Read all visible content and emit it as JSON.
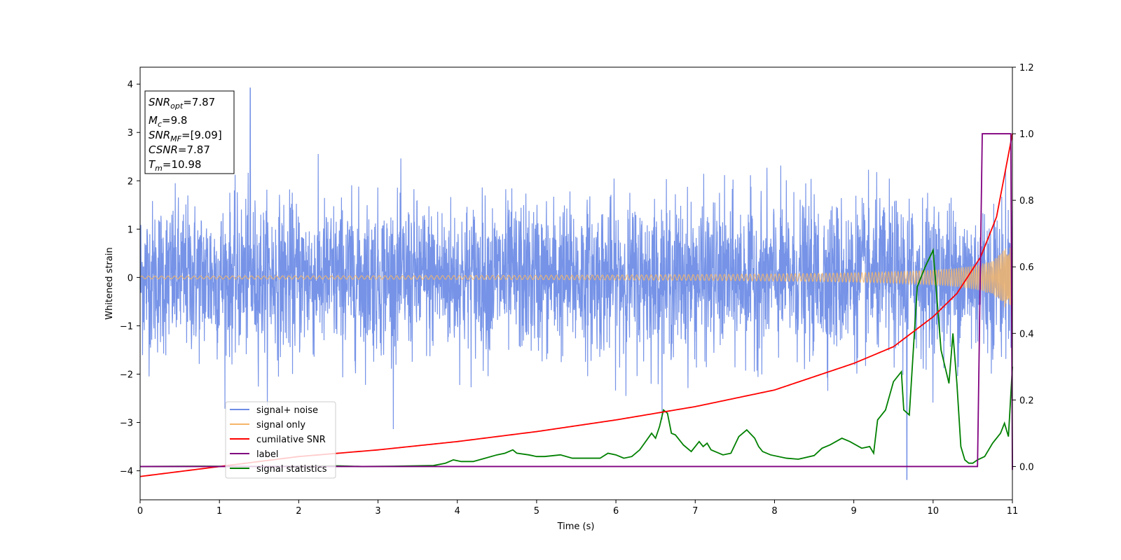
{
  "chart_data": {
    "type": "line",
    "xlabel": "Time (s)",
    "ylabel": "Whitened strain",
    "xlim": [
      0,
      11
    ],
    "ylim": [
      -4.6,
      4.35
    ],
    "ylim_right": [
      -0.1,
      1.2
    ],
    "x_ticks": [
      0,
      1,
      2,
      3,
      4,
      5,
      6,
      7,
      8,
      9,
      10,
      11
    ],
    "y_ticks": [
      -4,
      -3,
      -2,
      -1,
      0,
      1,
      2,
      3,
      4
    ],
    "y_ticks_right": [
      0.0,
      0.2,
      0.4,
      0.6,
      0.8,
      1.0,
      1.2
    ],
    "info_box": {
      "snr_opt": {
        "base": "SNR",
        "sub": "opt",
        "value": "=7.87"
      },
      "mc": {
        "base": "M",
        "sub": "c",
        "value": "=9.8"
      },
      "snr_mf": {
        "base": "SNR",
        "sub": "MF",
        "value": "=[9.09]"
      },
      "csnr": {
        "base": "CSNR",
        "value": "=7.87"
      },
      "tm": {
        "base": "T",
        "sub": "m",
        "value": "=10.98"
      }
    },
    "series": [
      {
        "name": "signal+ noise",
        "axis": "left",
        "color": "#6f8de6",
        "description": "white noise band, roughly -1.5 to 1.5 with spikes to about ±3.5; max 3.92 at t=1.39, min -4.18 at t=9.67"
      },
      {
        "name": "signal only",
        "axis": "left",
        "color": "#f5b66a",
        "description": "chirp, amplitude ~0.03 rising to ~0.6 near t=11"
      },
      {
        "name": "cumilative SNR",
        "axis": "right",
        "color": "#ff0000",
        "x": [
          0,
          1,
          2,
          3,
          4,
          5,
          6,
          7,
          8,
          9,
          9.5,
          10,
          10.3,
          10.6,
          10.8,
          11
        ],
        "y": [
          -0.03,
          0.0,
          0.03,
          0.05,
          0.075,
          0.105,
          0.14,
          0.18,
          0.23,
          0.31,
          0.36,
          0.45,
          0.52,
          0.63,
          0.75,
          1.0
        ]
      },
      {
        "name": "label",
        "axis": "right",
        "color": "#800080",
        "x": [
          0,
          10.56,
          10.62,
          10.95,
          10.98,
          11
        ],
        "y": [
          0,
          0,
          1,
          1,
          1,
          -0.01
        ]
      },
      {
        "name": "signal statistics",
        "axis": "right",
        "color": "#008000",
        "x": [
          0,
          0.8,
          1.5,
          2.5,
          2.8,
          3.2,
          3.7,
          3.85,
          3.95,
          4.05,
          4.2,
          4.35,
          4.5,
          4.6,
          4.7,
          4.75,
          4.9,
          5.0,
          5.1,
          5.3,
          5.45,
          5.6,
          5.8,
          5.9,
          6.0,
          6.1,
          6.2,
          6.3,
          6.45,
          6.5,
          6.55,
          6.6,
          6.65,
          6.7,
          6.75,
          6.85,
          6.95,
          7.05,
          7.1,
          7.15,
          7.2,
          7.25,
          7.35,
          7.45,
          7.55,
          7.65,
          7.75,
          7.8,
          7.85,
          7.95,
          8.15,
          8.3,
          8.5,
          8.6,
          8.7,
          8.85,
          8.95,
          9.1,
          9.2,
          9.25,
          9.3,
          9.4,
          9.5,
          9.6,
          9.63,
          9.7,
          9.8,
          9.9,
          10.0,
          10.1,
          10.15,
          10.2,
          10.25,
          10.3,
          10.35,
          10.4,
          10.45,
          10.5,
          10.56,
          10.65,
          10.75,
          10.85,
          10.9,
          10.95,
          11.0
        ],
        "y": [
          0.0,
          0.001,
          0.0,
          0.002,
          0.0,
          0.001,
          0.003,
          0.01,
          0.02,
          0.015,
          0.015,
          0.025,
          0.035,
          0.04,
          0.05,
          0.04,
          0.035,
          0.03,
          0.03,
          0.035,
          0.025,
          0.025,
          0.025,
          0.04,
          0.035,
          0.025,
          0.03,
          0.05,
          0.1,
          0.085,
          0.12,
          0.17,
          0.16,
          0.1,
          0.095,
          0.065,
          0.045,
          0.075,
          0.06,
          0.07,
          0.05,
          0.045,
          0.035,
          0.04,
          0.09,
          0.11,
          0.085,
          0.06,
          0.045,
          0.035,
          0.025,
          0.022,
          0.033,
          0.055,
          0.065,
          0.085,
          0.075,
          0.055,
          0.06,
          0.04,
          0.14,
          0.17,
          0.255,
          0.285,
          0.17,
          0.155,
          0.54,
          0.6,
          0.65,
          0.35,
          0.3,
          0.25,
          0.4,
          0.25,
          0.06,
          0.02,
          0.01,
          0.01,
          0.02,
          0.03,
          0.07,
          0.1,
          0.13,
          0.09,
          0.3
        ]
      }
    ],
    "legend": {
      "position": "lower-left",
      "entries": [
        "signal+ noise",
        "signal only",
        "cumilative SNR",
        "label",
        "signal statistics"
      ]
    }
  }
}
